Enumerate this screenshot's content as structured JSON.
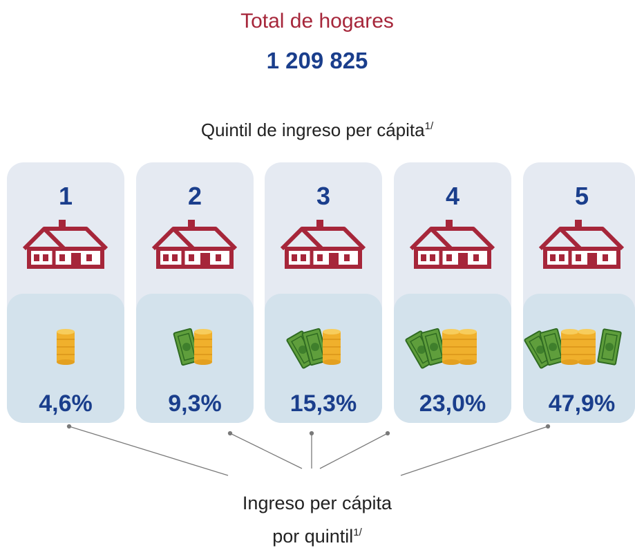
{
  "header": {
    "title": "Total de hogares",
    "total": "1 209 825"
  },
  "subtitle": {
    "text": "Quintil de ingreso per cápita",
    "note": "1/"
  },
  "quintiles": [
    {
      "label": "1",
      "share": "4,6%"
    },
    {
      "label": "2",
      "share": "9,3%"
    },
    {
      "label": "3",
      "share": "15,3%"
    },
    {
      "label": "4",
      "share": "23,0%"
    },
    {
      "label": "5",
      "share": "47,9%"
    }
  ],
  "footer": {
    "line1": "Ingreso per cápita",
    "line2": "por quintil",
    "note": "1/"
  }
}
